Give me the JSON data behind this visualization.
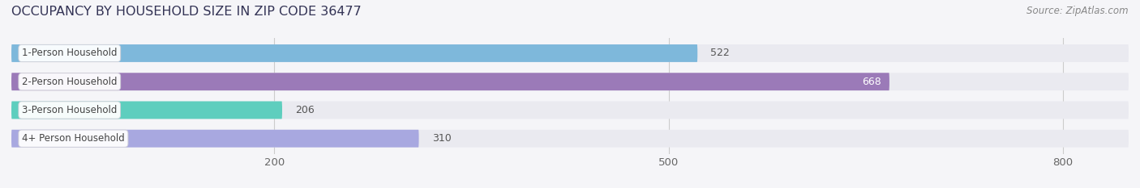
{
  "title": "OCCUPANCY BY HOUSEHOLD SIZE IN ZIP CODE 36477",
  "source": "Source: ZipAtlas.com",
  "categories": [
    "1-Person Household",
    "2-Person Household",
    "3-Person Household",
    "4+ Person Household"
  ],
  "values": [
    522,
    668,
    206,
    310
  ],
  "bar_colors": [
    "#7eb8db",
    "#9b7ab8",
    "#5ecebe",
    "#a8a8e0"
  ],
  "label_inside": [
    false,
    true,
    false,
    false
  ],
  "xlim": [
    0,
    850
  ],
  "xticks": [
    200,
    500,
    800
  ],
  "background_color": "#f5f5f8",
  "bar_bg_color": "#eaeaf0",
  "title_fontsize": 11.5,
  "source_fontsize": 8.5,
  "tick_fontsize": 9.5,
  "bar_label_fontsize": 9,
  "category_fontsize": 8.5,
  "bar_height": 0.62,
  "figsize": [
    14.06,
    2.33
  ],
  "dpi": 100
}
